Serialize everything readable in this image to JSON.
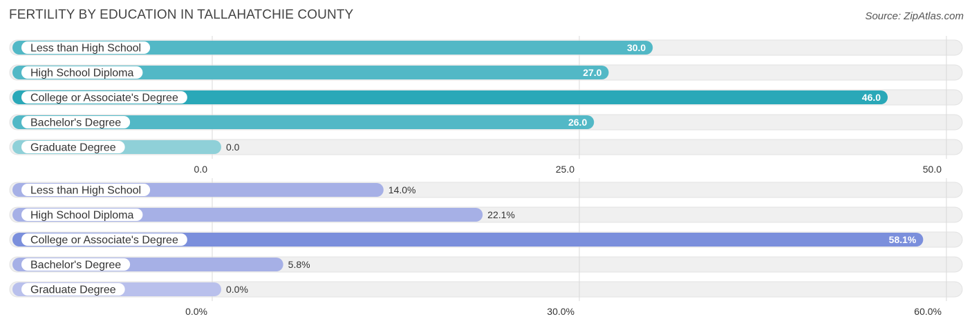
{
  "title": "FERTILITY BY EDUCATION IN TALLAHATCHIE COUNTY",
  "source": "Source: ZipAtlas.com",
  "colors": {
    "track": "#f0f0f0",
    "track_border": "#e2e2e2",
    "grid": "#d9d9d9",
    "top_normal": "#52b8c6",
    "top_highlight": "#2aa8b8",
    "top_zero": "#8fd0d8",
    "bottom_normal": "#a6b0e6",
    "bottom_highlight": "#7b8fdc",
    "bottom_zero": "#b9c0ec",
    "value_inside": "#ffffff",
    "value_outside": "#333333"
  },
  "chart_data": [
    {
      "type": "bar",
      "orientation": "horizontal",
      "categories": [
        "Less than High School",
        "High School Diploma",
        "College or Associate's Degree",
        "Bachelor's Degree",
        "Graduate Degree"
      ],
      "values": [
        30.0,
        27.0,
        46.0,
        26.0,
        0.0
      ],
      "value_labels": [
        "30.0",
        "27.0",
        "46.0",
        "26.0",
        "0.0"
      ],
      "highlight_index": 2,
      "xlim": [
        0,
        50
      ],
      "ticks": [
        0,
        25,
        50
      ],
      "tick_labels": [
        "0.0",
        "25.0",
        "50.0"
      ],
      "grid": true
    },
    {
      "type": "bar",
      "orientation": "horizontal",
      "categories": [
        "Less than High School",
        "High School Diploma",
        "College or Associate's Degree",
        "Bachelor's Degree",
        "Graduate Degree"
      ],
      "values": [
        14.0,
        22.1,
        58.1,
        5.8,
        0.0
      ],
      "value_labels": [
        "14.0%",
        "22.1%",
        "58.1%",
        "5.8%",
        "0.0%"
      ],
      "highlight_index": 2,
      "xlim": [
        0,
        60
      ],
      "ticks": [
        0,
        30,
        60
      ],
      "tick_labels": [
        "0.0%",
        "30.0%",
        "60.0%"
      ],
      "grid": true
    }
  ]
}
